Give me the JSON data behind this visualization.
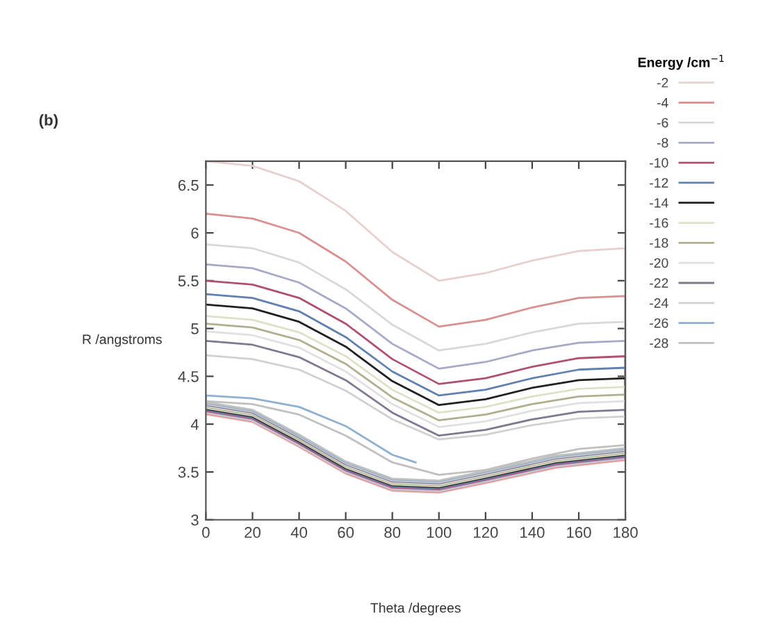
{
  "chart_data": {
    "type": "line",
    "xlabel": "Theta /degrees",
    "ylabel": "R /angstroms",
    "legend_title": "Energy /cm$^{−1}$",
    "annotations": [
      "(b)"
    ],
    "xlim": [
      0,
      180
    ],
    "ylim": [
      3,
      6.75
    ],
    "xticks": [
      0,
      20,
      40,
      60,
      80,
      100,
      120,
      140,
      160,
      180
    ],
    "yticks": [
      3,
      3.5,
      4,
      4.5,
      5,
      5.5,
      6,
      6.5
    ],
    "grid": false,
    "legend": "right",
    "marker": "none",
    "line_style": "solid",
    "series": [
      {
        "name": "-2",
        "color": "#e8d0d0",
        "x": [
          0,
          20,
          40,
          60,
          80,
          100,
          120,
          140,
          160,
          180,
          180,
          150,
          120,
          100,
          80,
          60,
          40,
          20,
          0
        ],
        "values": [
          6.75,
          6.7,
          6.54,
          6.23,
          5.8,
          5.5,
          5.58,
          5.71,
          5.81,
          5.84,
          3.62,
          3.54,
          3.38,
          3.28,
          3.3,
          3.48,
          3.76,
          4.02,
          4.1
        ]
      },
      {
        "name": "-4",
        "color": "#d89090",
        "x": [
          0,
          20,
          40,
          60,
          80,
          100,
          120,
          140,
          160,
          180,
          180,
          150,
          120,
          100,
          80,
          60,
          40,
          20,
          0
        ],
        "values": [
          6.2,
          6.15,
          6.0,
          5.7,
          5.3,
          5.02,
          5.09,
          5.22,
          5.32,
          5.34,
          3.63,
          3.55,
          3.39,
          3.29,
          3.31,
          3.49,
          3.77,
          4.03,
          4.11
        ]
      },
      {
        "name": "-6",
        "color": "#d8d8d8",
        "x": [
          0,
          20,
          40,
          60,
          80,
          100,
          120,
          140,
          160,
          180,
          180,
          150,
          120,
          100,
          80,
          60,
          40,
          20,
          0
        ],
        "values": [
          5.88,
          5.84,
          5.69,
          5.41,
          5.04,
          4.77,
          4.84,
          4.96,
          5.05,
          5.07,
          3.64,
          3.56,
          3.4,
          3.3,
          3.32,
          3.5,
          3.78,
          4.04,
          4.12
        ]
      },
      {
        "name": "-8",
        "color": "#a8a8c8",
        "x": [
          0,
          20,
          40,
          60,
          80,
          100,
          120,
          140,
          160,
          180,
          180,
          150,
          120,
          100,
          80,
          60,
          40,
          20,
          0
        ],
        "values": [
          5.67,
          5.63,
          5.48,
          5.21,
          4.84,
          4.58,
          4.65,
          4.77,
          4.85,
          4.87,
          3.65,
          3.57,
          3.41,
          3.31,
          3.33,
          3.51,
          3.79,
          4.05,
          4.13
        ]
      },
      {
        "name": "-10",
        "color": "#b05070",
        "x": [
          0,
          20,
          40,
          60,
          80,
          100,
          120,
          140,
          160,
          180,
          180,
          150,
          120,
          100,
          80,
          60,
          40,
          20,
          0
        ],
        "values": [
          5.5,
          5.46,
          5.32,
          5.05,
          4.68,
          4.42,
          4.48,
          4.6,
          4.69,
          4.71,
          3.66,
          3.58,
          3.42,
          3.32,
          3.34,
          3.52,
          3.8,
          4.06,
          4.14
        ]
      },
      {
        "name": "-12",
        "color": "#6080b0",
        "x": [
          0,
          20,
          40,
          60,
          80,
          100,
          120,
          140,
          160,
          180,
          180,
          150,
          120,
          100,
          80,
          60,
          40,
          20,
          0
        ],
        "values": [
          5.36,
          5.32,
          5.18,
          4.91,
          4.55,
          4.3,
          4.36,
          4.48,
          4.57,
          4.59,
          3.67,
          3.59,
          3.43,
          3.33,
          3.35,
          3.53,
          3.81,
          4.07,
          4.15
        ]
      },
      {
        "name": "-14",
        "color": "#202020",
        "x": [
          0,
          20,
          40,
          60,
          80,
          100,
          120,
          140,
          160,
          180,
          180,
          150,
          120,
          100,
          80,
          60,
          40,
          20,
          0
        ],
        "values": [
          5.25,
          5.21,
          5.07,
          4.81,
          4.45,
          4.2,
          4.26,
          4.38,
          4.46,
          4.48,
          3.68,
          3.6,
          3.44,
          3.34,
          3.36,
          3.54,
          3.82,
          4.08,
          4.16
        ]
      },
      {
        "name": "-16",
        "color": "#e0e0c8",
        "x": [
          0,
          20,
          40,
          60,
          80,
          100,
          120,
          140,
          160,
          180,
          180,
          150,
          120,
          100,
          80,
          60,
          40,
          20,
          0
        ],
        "values": [
          5.13,
          5.09,
          4.96,
          4.71,
          4.36,
          4.12,
          4.18,
          4.29,
          4.37,
          4.39,
          3.69,
          3.61,
          3.45,
          3.35,
          3.37,
          3.55,
          3.83,
          4.09,
          4.17
        ]
      },
      {
        "name": "-18",
        "color": "#b0b090",
        "x": [
          0,
          20,
          40,
          60,
          80,
          100,
          120,
          140,
          160,
          180,
          180,
          150,
          120,
          100,
          80,
          60,
          40,
          20,
          0
        ],
        "values": [
          5.05,
          5.01,
          4.88,
          4.63,
          4.28,
          4.04,
          4.1,
          4.21,
          4.29,
          4.31,
          3.7,
          3.62,
          3.46,
          3.36,
          3.38,
          3.56,
          3.84,
          4.1,
          4.18
        ]
      },
      {
        "name": "-20",
        "color": "#e0e0e0",
        "x": [
          0,
          20,
          40,
          60,
          80,
          100,
          120,
          140,
          160,
          180,
          180,
          150,
          120,
          100,
          80,
          60,
          40,
          20,
          0
        ],
        "values": [
          4.97,
          4.93,
          4.8,
          4.55,
          4.21,
          3.97,
          4.03,
          4.14,
          4.22,
          4.24,
          3.71,
          3.63,
          3.47,
          3.37,
          3.39,
          3.57,
          3.85,
          4.11,
          4.19
        ]
      },
      {
        "name": "-22",
        "color": "#807890",
        "x": [
          0,
          20,
          40,
          60,
          80,
          100,
          120,
          140,
          160,
          180,
          180,
          150,
          120,
          100,
          80,
          60,
          40,
          20,
          0
        ],
        "values": [
          4.87,
          4.83,
          4.7,
          4.46,
          4.12,
          3.88,
          3.94,
          4.05,
          4.13,
          4.15,
          3.72,
          3.64,
          3.48,
          3.38,
          3.4,
          3.58,
          3.86,
          4.12,
          4.2
        ]
      },
      {
        "name": "-24",
        "color": "#d0d0d0",
        "x": [
          0,
          20,
          40,
          60,
          80,
          100,
          120,
          140,
          160,
          180,
          180,
          150,
          120,
          100,
          80,
          60,
          40,
          20,
          0
        ],
        "values": [
          4.72,
          4.68,
          4.57,
          4.35,
          4.05,
          3.84,
          3.89,
          3.99,
          4.06,
          4.08,
          3.73,
          3.65,
          3.49,
          3.39,
          3.41,
          3.59,
          3.87,
          4.13,
          4.21
        ]
      },
      {
        "name": "-26",
        "color": "#90b0d0",
        "x": [
          180,
          150,
          120,
          100,
          80,
          60,
          40,
          20,
          0,
          0,
          20,
          40,
          60,
          80,
          90
        ],
        "values": [
          3.74,
          3.66,
          3.5,
          3.4,
          3.42,
          3.6,
          3.88,
          4.14,
          4.22,
          4.3,
          4.27,
          4.18,
          3.98,
          3.68,
          3.6
        ]
      },
      {
        "name": "-28",
        "color": "#c0c0c0",
        "x": [
          0,
          20,
          40,
          60,
          80,
          100,
          120,
          140,
          160,
          180,
          180,
          150,
          120,
          100,
          80,
          60,
          40,
          20,
          0
        ],
        "values": [
          4.24,
          4.21,
          4.1,
          3.88,
          3.6,
          3.47,
          3.52,
          3.64,
          3.74,
          3.78,
          3.75,
          3.67,
          3.51,
          3.41,
          3.43,
          3.61,
          3.89,
          4.15,
          4.23
        ]
      }
    ]
  }
}
